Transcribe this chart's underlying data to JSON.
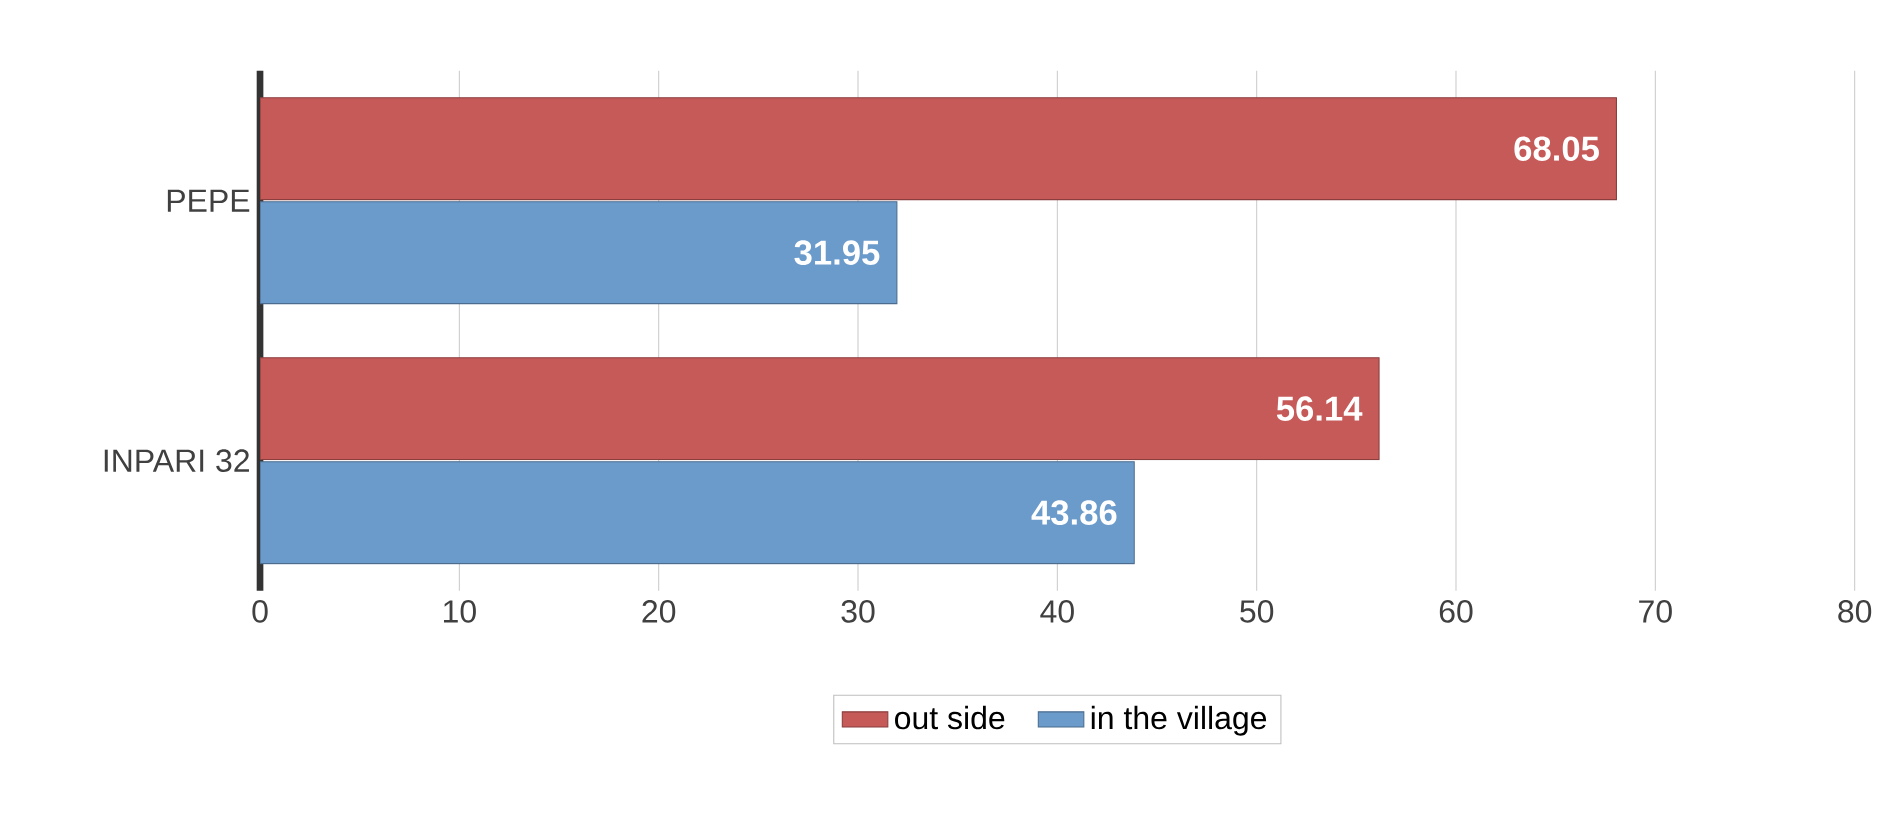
{
  "chart_data": {
    "type": "bar",
    "orientation": "horizontal",
    "categories": [
      "PEPE",
      "INPARI 32"
    ],
    "series": [
      {
        "name": "out side",
        "color": "#c55a58",
        "values": [
          68.05,
          56.14
        ]
      },
      {
        "name": "in the village",
        "color": "#6b9bcb",
        "values": [
          31.95,
          43.86
        ]
      }
    ],
    "xlim": [
      0,
      80
    ],
    "xticks": [
      0,
      10,
      20,
      30,
      40,
      50,
      60,
      70,
      80
    ],
    "grid": "x",
    "legend": "bottom",
    "data_labels": true
  }
}
